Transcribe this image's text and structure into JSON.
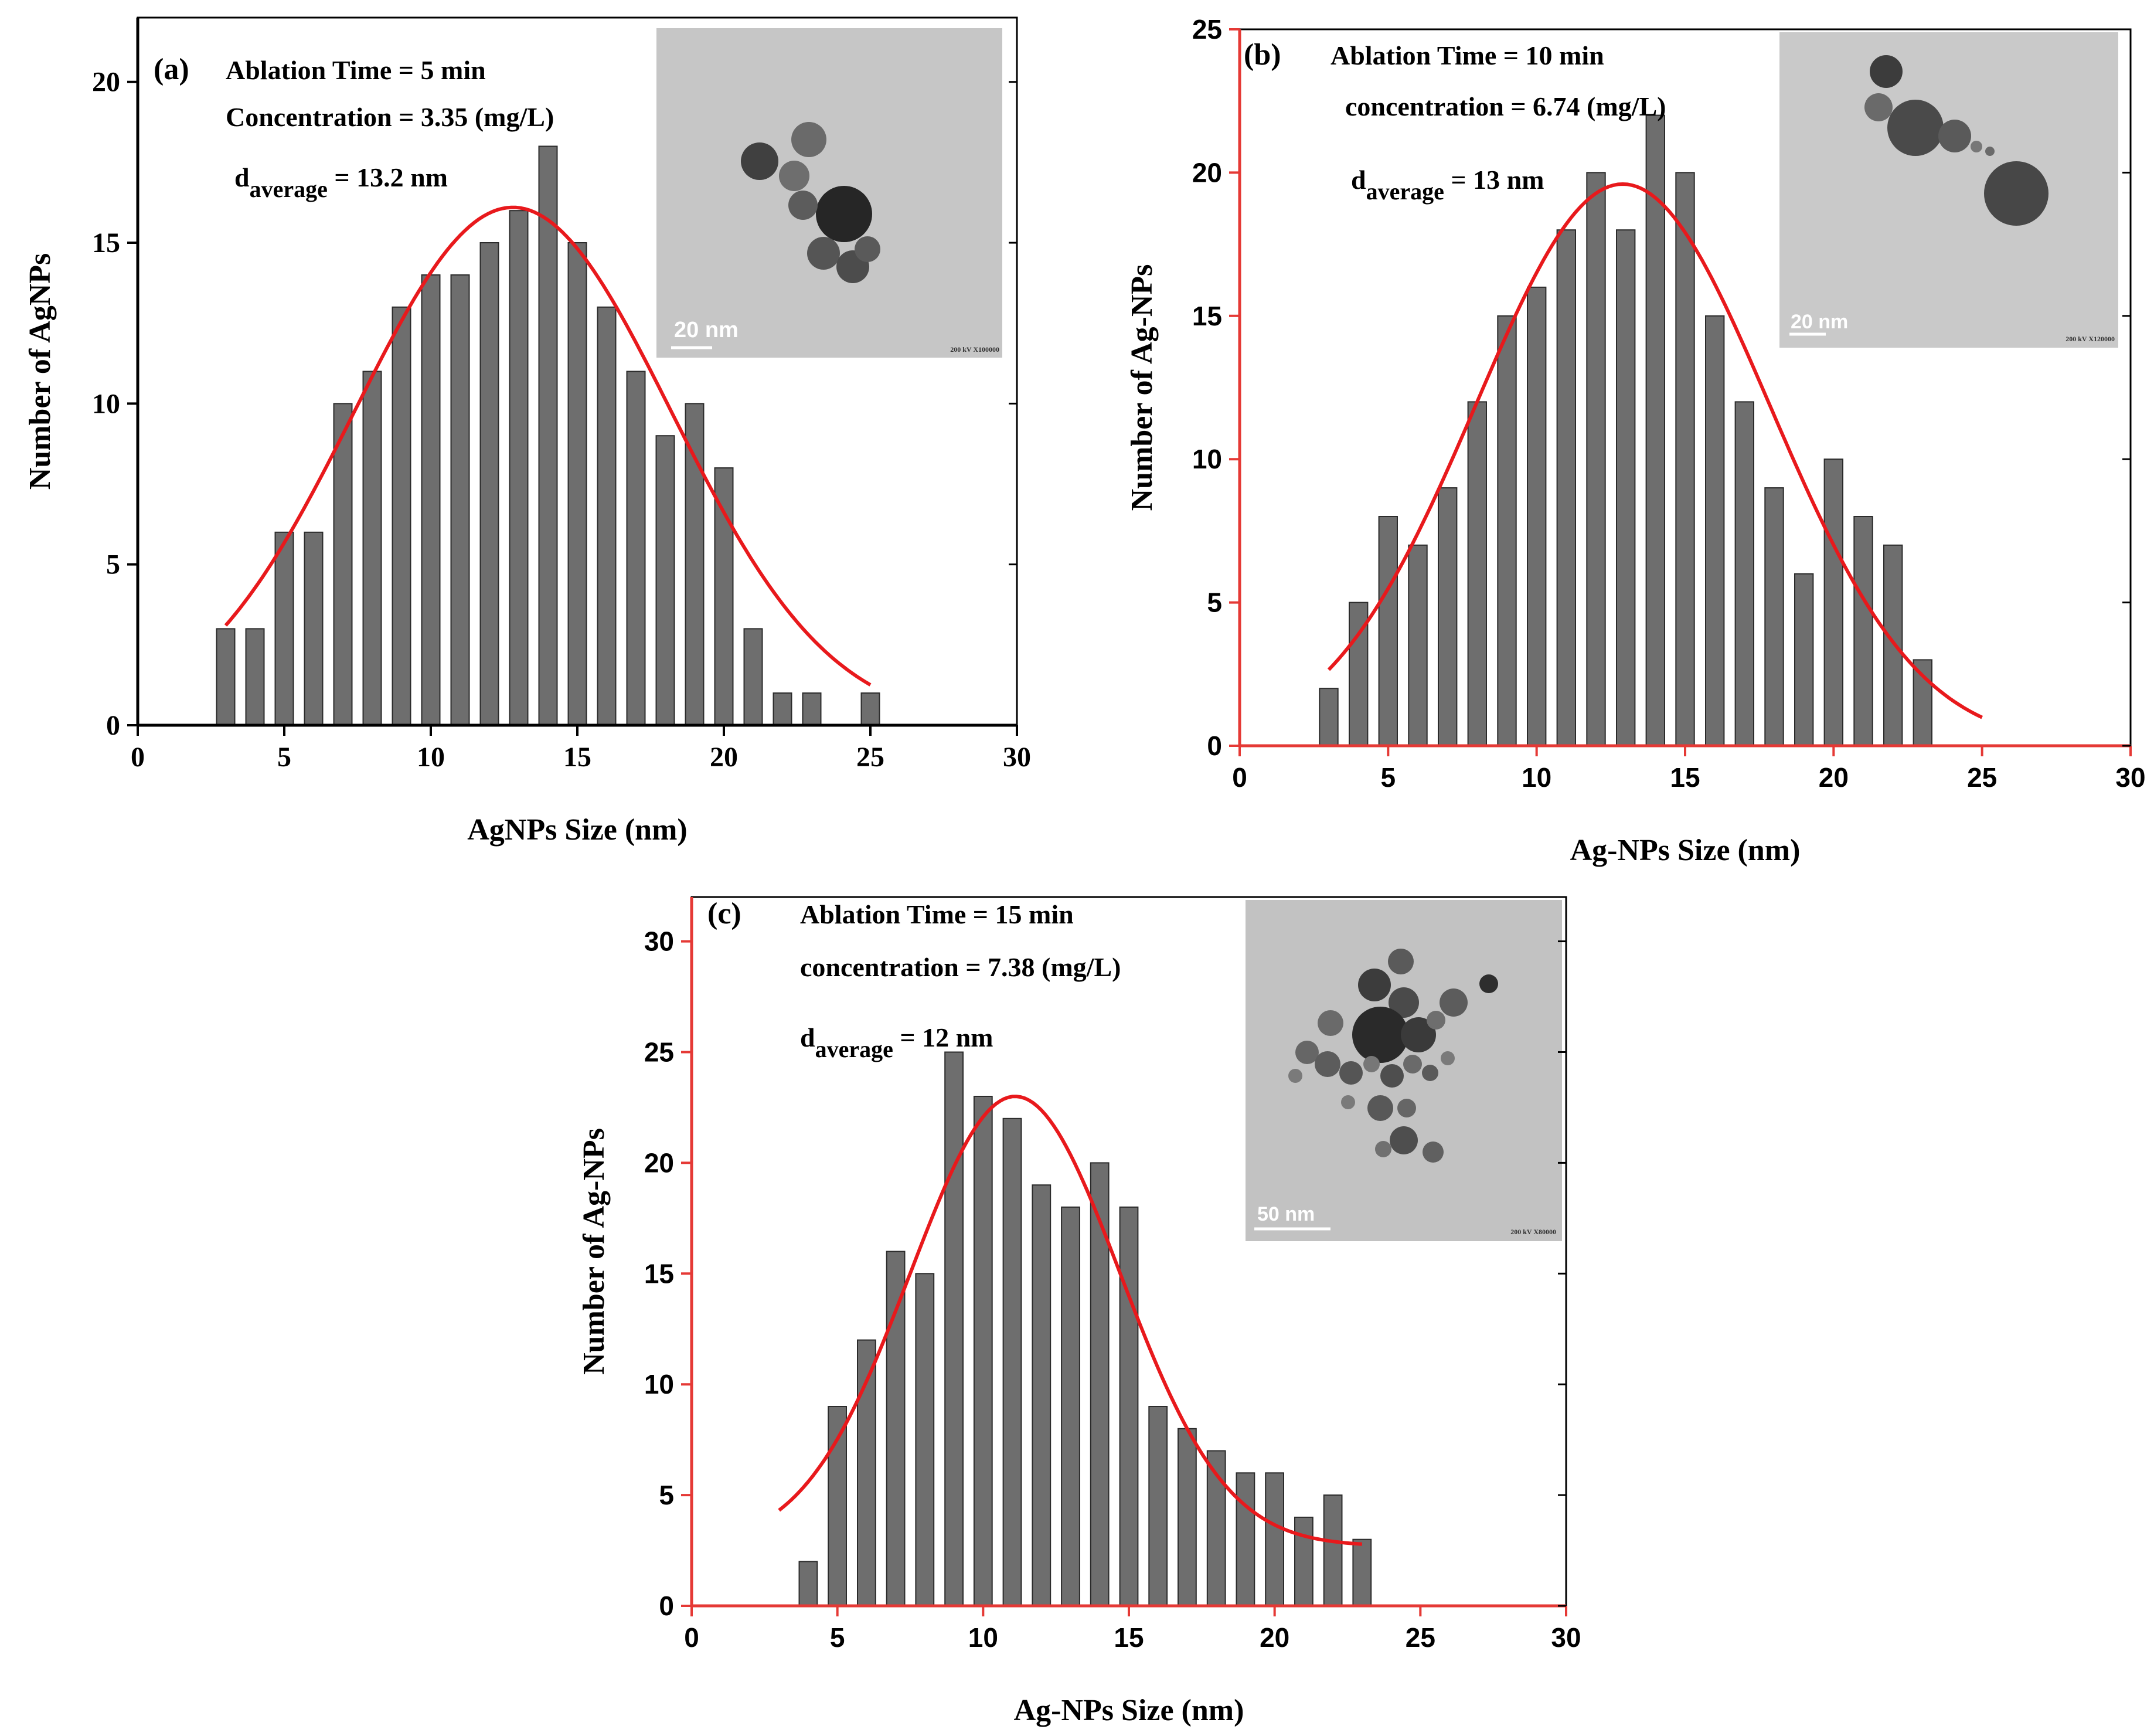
{
  "chart_data": [
    {
      "panel": "(a)",
      "type": "bar",
      "x": [
        3,
        4,
        5,
        6,
        7,
        8,
        9,
        10,
        11,
        12,
        13,
        14,
        15,
        16,
        17,
        18,
        19,
        20,
        21,
        22,
        23,
        25
      ],
      "values": [
        3,
        3,
        6,
        6,
        10,
        11,
        13,
        14,
        14,
        15,
        16,
        18,
        15,
        13,
        11,
        9,
        10,
        8,
        3,
        1,
        1,
        1
      ],
      "fit": {
        "type": "gaussian",
        "peak": 16.1,
        "center": 12.8,
        "sigma": 5.4,
        "x_range": [
          3,
          25
        ]
      },
      "xlabel": "AgNPs Size (nm)",
      "ylabel": "Number of AgNPs",
      "xlim": [
        0,
        30
      ],
      "ylim": [
        0,
        22
      ],
      "xticks": [
        0,
        5,
        10,
        15,
        20,
        25,
        30
      ],
      "yticks": [
        0,
        5,
        10,
        15,
        20
      ],
      "annotations": {
        "ablation": "Ablation Time = 5 min",
        "concentration": "Concentration = 3.35 (mg/L)",
        "d_symbol": "d",
        "d_sub": "average",
        "d_value": " = 13.2 nm"
      },
      "inset": {
        "scale_label": "20 nm",
        "caption": "200 kV X100000"
      },
      "axis_color": "#000000"
    },
    {
      "panel": "(b)",
      "type": "bar",
      "x": [
        3,
        4,
        5,
        6,
        7,
        8,
        9,
        10,
        11,
        12,
        13,
        14,
        15,
        16,
        17,
        18,
        19,
        20,
        21,
        22,
        23
      ],
      "values": [
        2,
        5,
        8,
        7,
        9,
        12,
        15,
        16,
        18,
        20,
        18,
        22,
        20,
        15,
        12,
        9,
        6,
        10,
        8,
        7,
        3
      ],
      "fit": {
        "type": "gaussian",
        "peak": 19.6,
        "center": 12.9,
        "sigma": 4.95,
        "x_range": [
          3,
          25
        ]
      },
      "xlabel": "Ag-NPs Size (nm)",
      "ylabel": "Number of Ag-NPs",
      "xlim": [
        0,
        30
      ],
      "ylim": [
        0,
        25
      ],
      "xticks": [
        0,
        5,
        10,
        15,
        20,
        25,
        30
      ],
      "yticks": [
        0,
        5,
        10,
        15,
        20,
        25
      ],
      "annotations": {
        "ablation": "Ablation Time = 10 min",
        "concentration": "concentration = 6.74 (mg/L)",
        "d_symbol": "d",
        "d_sub": "average",
        "d_value": " = 13 nm"
      },
      "inset": {
        "scale_label": "20 nm",
        "caption": "200 kV X120000"
      },
      "axis_color": "#e53935"
    },
    {
      "panel": "(c)",
      "type": "bar",
      "x": [
        4,
        5,
        6,
        7,
        8,
        9,
        10,
        11,
        12,
        13,
        14,
        15,
        16,
        17,
        18,
        19,
        20,
        21,
        22,
        23
      ],
      "values": [
        2,
        9,
        12,
        16,
        15,
        25,
        23,
        22,
        19,
        18,
        20,
        18,
        9,
        8,
        7,
        6,
        6,
        4,
        5,
        3
      ],
      "fit": {
        "type": "gaussian",
        "peak": 20.3,
        "center": 11.1,
        "sigma": 3.6,
        "offset": 2.7,
        "x_range": [
          3,
          23
        ]
      },
      "xlabel": "Ag-NPs Size (nm)",
      "ylabel": "Number of Ag-NPs",
      "xlim": [
        0,
        30
      ],
      "ylim": [
        0,
        32
      ],
      "xticks": [
        0,
        5,
        10,
        15,
        20,
        25,
        30
      ],
      "yticks": [
        0,
        5,
        10,
        15,
        20,
        25,
        30
      ],
      "annotations": {
        "ablation": "Ablation Time = 15 min",
        "concentration": "concentration = 7.38 (mg/L)",
        "d_symbol": "d",
        "d_sub": "average",
        "d_value": " = 12 nm"
      },
      "inset": {
        "scale_label": "50 nm",
        "caption": "200 kV X80000"
      },
      "axis_color": "#e53935"
    }
  ],
  "colors": {
    "bar_fill": "#6e6e6e",
    "bar_stroke": "#2b2b2b",
    "fit_line": "#e8191c",
    "inset_bg": "#c4c4c4",
    "particle": "#4a4a4a"
  }
}
